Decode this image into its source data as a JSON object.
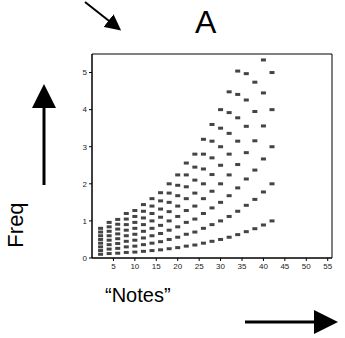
{
  "chart_data": {
    "type": "scatter",
    "title": "A",
    "x_label": "“Notes”",
    "y_label": "Freq",
    "marker": "square",
    "color": "#444444",
    "x": [
      2,
      4,
      6,
      8,
      10,
      12,
      14,
      16,
      18,
      20,
      22,
      24,
      26,
      28,
      30,
      32,
      34,
      36,
      38,
      40,
      42
    ],
    "series": [
      {
        "values": [
          0.1,
          0.12,
          0.13,
          0.15,
          0.16,
          0.18,
          0.2,
          0.22,
          0.25,
          0.28,
          0.32,
          0.35,
          0.4,
          0.45,
          0.5,
          0.56,
          0.63,
          0.71,
          0.79,
          0.89,
          1.0
        ]
      },
      {
        "values": [
          0.2,
          0.24,
          0.26,
          0.3,
          0.32,
          0.36,
          0.4,
          0.44,
          0.5,
          0.56,
          0.64,
          0.7,
          0.8,
          0.9,
          1.0,
          1.12,
          1.26,
          1.42,
          1.58,
          1.78,
          2.0
        ]
      },
      {
        "values": [
          0.3,
          0.36,
          0.39,
          0.45,
          0.48,
          0.54,
          0.6,
          0.66,
          0.75,
          0.84,
          0.96,
          1.05,
          1.2,
          1.35,
          1.5,
          1.68,
          1.89,
          2.13,
          2.37,
          2.67,
          3.0
        ]
      },
      {
        "values": [
          0.4,
          0.48,
          0.52,
          0.6,
          0.64,
          0.72,
          0.8,
          0.88,
          1.0,
          1.12,
          1.28,
          1.4,
          1.6,
          1.8,
          2.0,
          2.24,
          2.52,
          2.84,
          3.16,
          3.56,
          4.0
        ]
      },
      {
        "values": [
          0.5,
          0.6,
          0.65,
          0.75,
          0.8,
          0.9,
          1.0,
          1.1,
          1.25,
          1.4,
          1.6,
          1.75,
          2.0,
          2.25,
          2.5,
          2.8,
          3.15,
          3.55,
          3.95,
          4.45,
          5.0
        ]
      },
      {
        "values": [
          0.6,
          0.72,
          0.78,
          0.9,
          0.96,
          1.08,
          1.2,
          1.32,
          1.5,
          1.68,
          1.92,
          2.1,
          2.4,
          2.7,
          3.0,
          3.36,
          3.78,
          4.26,
          4.74,
          5.34,
          null
        ]
      },
      {
        "values": [
          0.7,
          0.84,
          0.91,
          1.05,
          1.12,
          1.26,
          1.4,
          1.54,
          1.75,
          1.96,
          2.24,
          2.45,
          2.8,
          3.15,
          3.5,
          3.92,
          4.41,
          4.97,
          null,
          null,
          null
        ]
      },
      {
        "values": [
          0.8,
          0.96,
          1.04,
          1.2,
          1.28,
          1.44,
          1.6,
          1.76,
          2.0,
          2.24,
          2.56,
          2.8,
          3.2,
          3.6,
          4.0,
          4.48,
          5.04,
          null,
          null,
          null,
          null
        ]
      }
    ],
    "xlim": [
      0,
      56
    ],
    "xticks": [
      5,
      10,
      15,
      20,
      25,
      30,
      35,
      40,
      45,
      50,
      55
    ],
    "ylim": [
      0,
      5.5
    ],
    "yticks": [
      0,
      1,
      2,
      3,
      4,
      5
    ]
  }
}
